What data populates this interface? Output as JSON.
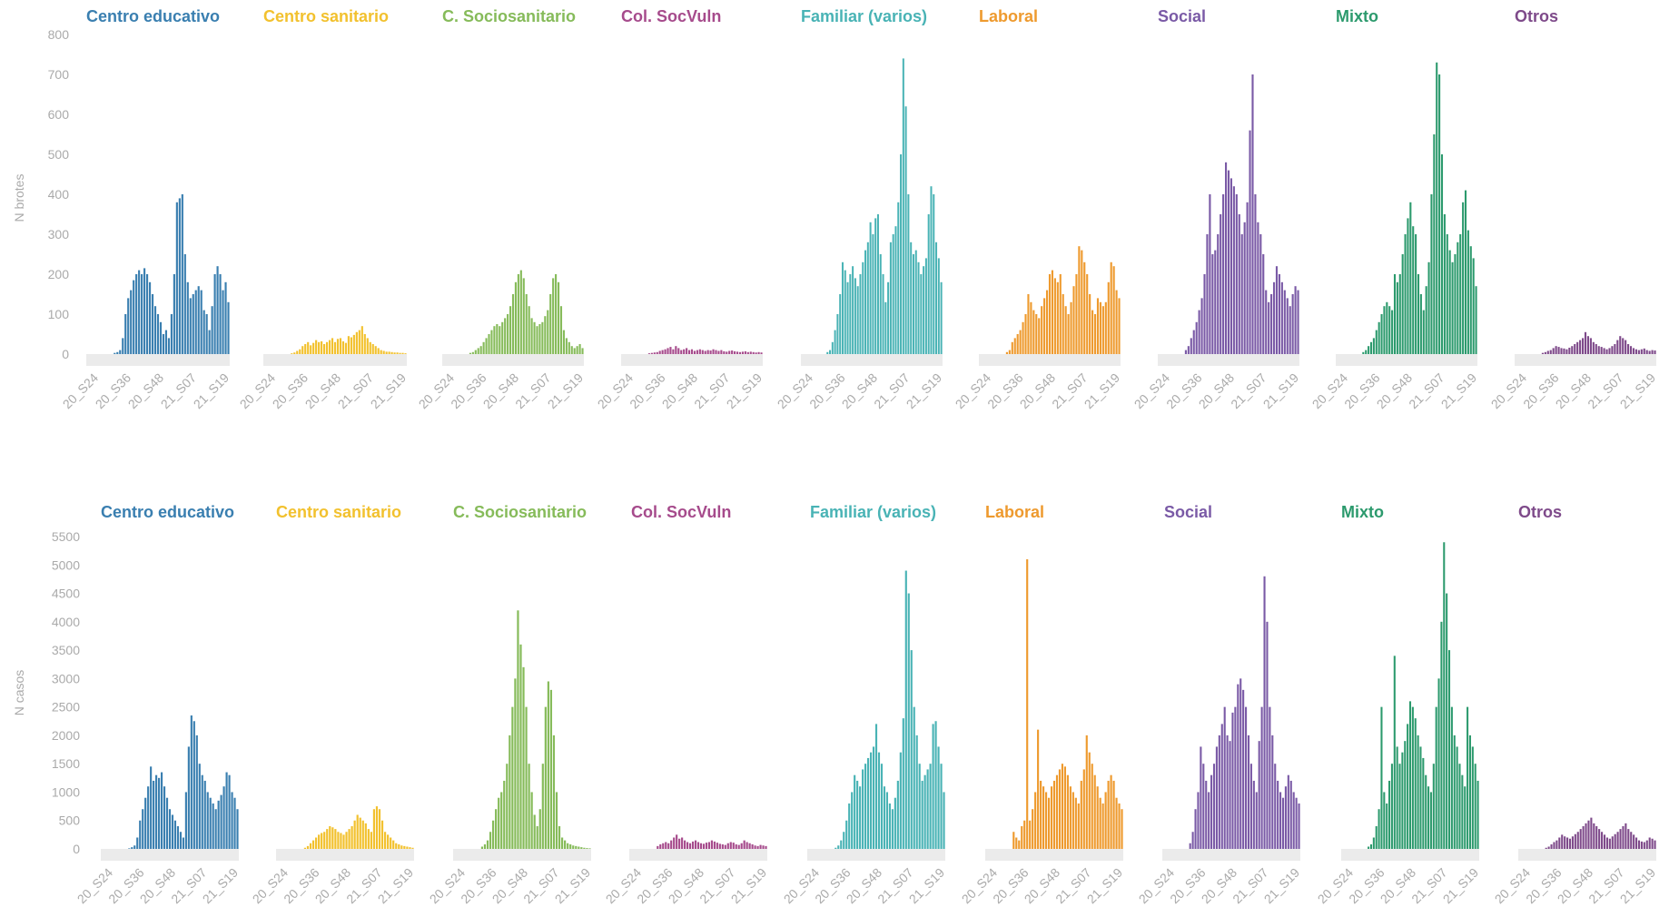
{
  "figure": {
    "row_labels": [
      "N brotes",
      "N casos"
    ]
  },
  "colors": {
    "Centro educativo": "#3a7fb0",
    "Centro sanitario": "#f2c12e",
    "C. Sociosanitario": "#86bb5a",
    "Col. SocVuln": "#a64b8c",
    "Familiar (varios)": "#49b3b5",
    "Laboral": "#ee9a2e",
    "Social": "#7a5aa6",
    "Mixto": "#2c9a6d",
    "Otros": "#7e4a8a",
    "axis_band": "#ebebeb",
    "tick_label": "#aaaaaa"
  },
  "chart_data": [
    {
      "type": "bar",
      "ylabel": "N brotes",
      "ylim": [
        0,
        800
      ],
      "yticks": [
        0,
        100,
        200,
        300,
        400,
        500,
        600,
        700,
        800
      ],
      "xtick_labels": [
        "20_S24",
        "20_S36",
        "20_S48",
        "21_S07",
        "21_S19"
      ],
      "x_range": [
        "20_S24",
        "21_S22"
      ],
      "grid": false,
      "legend": "panel titles",
      "series": [
        {
          "name": "Centro educativo",
          "values": [
            0,
            0,
            0,
            0,
            0,
            0,
            0,
            0,
            0,
            0,
            3,
            5,
            10,
            40,
            100,
            140,
            160,
            185,
            200,
            210,
            200,
            215,
            200,
            180,
            150,
            120,
            100,
            80,
            50,
            60,
            40,
            100,
            200,
            380,
            390,
            400,
            250,
            180,
            140,
            150,
            160,
            170,
            160,
            110,
            100,
            60,
            120,
            200,
            220,
            200,
            160,
            180,
            130
          ]
        },
        {
          "name": "Centro sanitario",
          "values": [
            0,
            0,
            0,
            0,
            0,
            0,
            0,
            0,
            0,
            0,
            2,
            4,
            8,
            12,
            20,
            25,
            30,
            22,
            28,
            35,
            30,
            32,
            25,
            30,
            35,
            40,
            30,
            38,
            40,
            32,
            28,
            45,
            42,
            48,
            55,
            60,
            70,
            50,
            40,
            30,
            25,
            20,
            15,
            10,
            8,
            6,
            6,
            5,
            4,
            4,
            3,
            3,
            2
          ]
        },
        {
          "name": "C. Sociosanitario",
          "values": [
            0,
            0,
            0,
            0,
            0,
            0,
            0,
            0,
            0,
            0,
            3,
            5,
            10,
            15,
            20,
            30,
            40,
            50,
            60,
            70,
            75,
            70,
            80,
            90,
            100,
            120,
            150,
            180,
            200,
            210,
            190,
            150,
            120,
            90,
            80,
            70,
            75,
            80,
            95,
            110,
            150,
            190,
            200,
            180,
            120,
            60,
            40,
            30,
            20,
            15,
            20,
            25,
            15
          ]
        },
        {
          "name": "Col. SocVuln",
          "values": [
            0,
            0,
            0,
            0,
            0,
            0,
            0,
            0,
            0,
            0,
            2,
            3,
            4,
            5,
            8,
            10,
            12,
            15,
            18,
            12,
            20,
            15,
            10,
            12,
            15,
            10,
            12,
            8,
            10,
            12,
            10,
            8,
            10,
            9,
            12,
            10,
            8,
            10,
            7,
            6,
            8,
            9,
            7,
            6,
            5,
            6,
            7,
            5,
            6,
            5,
            4,
            5,
            4
          ]
        },
        {
          "name": "Familiar (varios)",
          "values": [
            0,
            0,
            0,
            0,
            0,
            0,
            0,
            0,
            0,
            0,
            5,
            10,
            30,
            60,
            100,
            150,
            230,
            210,
            180,
            200,
            220,
            190,
            170,
            200,
            230,
            260,
            280,
            330,
            300,
            340,
            350,
            250,
            200,
            130,
            180,
            280,
            300,
            320,
            380,
            500,
            740,
            620,
            400,
            280,
            250,
            260,
            230,
            200,
            220,
            240,
            350,
            420,
            400,
            280,
            240,
            180
          ]
        },
        {
          "name": "Laboral",
          "values": [
            0,
            0,
            0,
            0,
            0,
            0,
            0,
            0,
            0,
            0,
            5,
            10,
            30,
            40,
            50,
            60,
            80,
            100,
            150,
            130,
            110,
            100,
            90,
            120,
            140,
            160,
            200,
            210,
            190,
            180,
            200,
            150,
            120,
            100,
            130,
            170,
            200,
            270,
            260,
            230,
            200,
            150,
            110,
            100,
            140,
            130,
            120,
            130,
            180,
            230,
            220,
            160,
            140
          ]
        },
        {
          "name": "Social",
          "values": [
            0,
            0,
            0,
            0,
            0,
            0,
            0,
            0,
            0,
            0,
            10,
            20,
            40,
            60,
            80,
            110,
            140,
            200,
            300,
            400,
            250,
            260,
            300,
            350,
            400,
            480,
            460,
            440,
            420,
            400,
            350,
            300,
            330,
            380,
            560,
            700,
            400,
            330,
            300,
            250,
            160,
            130,
            150,
            180,
            220,
            200,
            180,
            160,
            140,
            120,
            150,
            170,
            160
          ]
        },
        {
          "name": "Mixto",
          "values": [
            0,
            0,
            0,
            0,
            0,
            0,
            0,
            0,
            0,
            0,
            5,
            10,
            20,
            30,
            40,
            60,
            80,
            100,
            120,
            130,
            120,
            110,
            200,
            180,
            200,
            250,
            300,
            340,
            380,
            320,
            300,
            200,
            150,
            110,
            170,
            230,
            400,
            550,
            730,
            700,
            500,
            350,
            300,
            260,
            230,
            250,
            280,
            300,
            380,
            410,
            310,
            270,
            240,
            170
          ]
        },
        {
          "name": "Otros",
          "values": [
            0,
            0,
            0,
            0,
            0,
            0,
            0,
            0,
            0,
            0,
            3,
            5,
            8,
            10,
            15,
            20,
            18,
            15,
            14,
            12,
            16,
            20,
            25,
            30,
            35,
            40,
            55,
            45,
            40,
            30,
            25,
            20,
            18,
            15,
            12,
            15,
            20,
            25,
            35,
            45,
            40,
            35,
            25,
            20,
            15,
            12,
            10,
            12,
            14,
            10,
            8,
            10,
            9
          ]
        }
      ]
    },
    {
      "type": "bar",
      "ylabel": "N casos",
      "ylim": [
        0,
        5500
      ],
      "yticks": [
        0,
        500,
        1000,
        1500,
        2000,
        2500,
        3000,
        3500,
        4000,
        4500,
        5000,
        5500
      ],
      "xtick_labels": [
        "20_S24",
        "20_S36",
        "20_S48",
        "21_S07",
        "21_S19"
      ],
      "x_range": [
        "20_S24",
        "21_S22"
      ],
      "grid": false,
      "legend": "panel titles",
      "series": [
        {
          "name": "Centro educativo",
          "values": [
            0,
            0,
            0,
            0,
            0,
            0,
            0,
            0,
            0,
            0,
            10,
            30,
            60,
            200,
            500,
            700,
            900,
            1100,
            1450,
            1200,
            1300,
            1250,
            1350,
            1100,
            900,
            700,
            600,
            500,
            400,
            300,
            200,
            1000,
            1800,
            2350,
            2250,
            2000,
            1500,
            1300,
            1200,
            1000,
            900,
            800,
            700,
            850,
            950,
            1100,
            1350,
            1300,
            1000,
            900,
            700
          ]
        },
        {
          "name": "Centro sanitario",
          "values": [
            0,
            0,
            0,
            0,
            0,
            0,
            0,
            0,
            0,
            0,
            20,
            50,
            100,
            150,
            200,
            250,
            280,
            300,
            350,
            400,
            380,
            350,
            300,
            280,
            250,
            300,
            350,
            400,
            500,
            600,
            550,
            500,
            450,
            350,
            300,
            700,
            750,
            700,
            500,
            300,
            250,
            200,
            150,
            100,
            80,
            60,
            50,
            40,
            30,
            20
          ]
        },
        {
          "name": "C. Sociosanitario",
          "values": [
            0,
            0,
            0,
            0,
            0,
            0,
            0,
            0,
            0,
            0,
            40,
            80,
            150,
            300,
            500,
            700,
            900,
            1000,
            1200,
            1500,
            2000,
            2500,
            3000,
            4200,
            3600,
            3200,
            2500,
            1500,
            1000,
            600,
            400,
            700,
            1500,
            2500,
            2950,
            2800,
            2000,
            1000,
            400,
            200,
            150,
            100,
            80,
            60,
            50,
            40,
            30,
            20,
            15,
            10
          ]
        },
        {
          "name": "Col. SocVuln",
          "values": [
            0,
            0,
            0,
            0,
            0,
            0,
            0,
            0,
            0,
            0,
            50,
            80,
            100,
            120,
            100,
            150,
            200,
            250,
            180,
            200,
            150,
            120,
            100,
            130,
            150,
            120,
            100,
            90,
            110,
            120,
            150,
            130,
            110,
            90,
            80,
            70,
            100,
            120,
            110,
            80,
            70,
            100,
            150,
            120,
            100,
            80,
            60,
            50,
            70,
            60,
            50
          ]
        },
        {
          "name": "Familiar (varios)",
          "values": [
            0,
            0,
            0,
            0,
            0,
            0,
            0,
            0,
            0,
            0,
            20,
            60,
            150,
            300,
            500,
            800,
            1000,
            1300,
            1200,
            1100,
            1400,
            1500,
            1600,
            1700,
            1800,
            2200,
            1700,
            1500,
            1100,
            1000,
            800,
            700,
            900,
            1200,
            1700,
            2300,
            4900,
            4500,
            3500,
            2500,
            2000,
            1500,
            1200,
            1300,
            1400,
            1500,
            2200,
            2250,
            1800,
            1500,
            1000
          ]
        },
        {
          "name": "Laboral",
          "values": [
            0,
            0,
            0,
            0,
            0,
            0,
            0,
            0,
            0,
            0,
            300,
            200,
            150,
            400,
            500,
            5100,
            500,
            700,
            1000,
            2100,
            1200,
            1100,
            1000,
            900,
            1100,
            1200,
            1300,
            1400,
            1500,
            1450,
            1300,
            1100,
            1000,
            900,
            800,
            1200,
            1400,
            2000,
            1700,
            1500,
            1300,
            1100,
            900,
            800,
            1000,
            1200,
            1300,
            1200,
            900,
            800,
            700
          ]
        },
        {
          "name": "Social",
          "values": [
            0,
            0,
            0,
            0,
            0,
            0,
            0,
            0,
            0,
            0,
            100,
            300,
            700,
            1000,
            1800,
            1500,
            1200,
            1000,
            1300,
            1500,
            1800,
            2000,
            2200,
            2500,
            2000,
            1900,
            2400,
            2500,
            2900,
            3000,
            2800,
            2500,
            2000,
            1500,
            1200,
            1000,
            1900,
            2500,
            4800,
            4000,
            2500,
            2000,
            1500,
            1200,
            1000,
            900,
            1100,
            1300,
            1200,
            1000,
            900,
            800
          ]
        },
        {
          "name": "Mixto",
          "values": [
            0,
            0,
            0,
            0,
            0,
            0,
            0,
            0,
            0,
            0,
            40,
            80,
            200,
            400,
            700,
            2500,
            1000,
            800,
            1200,
            1500,
            3400,
            1800,
            1500,
            1700,
            1900,
            2200,
            2600,
            2500,
            2300,
            2000,
            1800,
            1600,
            1300,
            1100,
            1000,
            1500,
            2500,
            3000,
            4000,
            5400,
            4500,
            3500,
            2500,
            2000,
            1800,
            1500,
            1300,
            1100,
            2500,
            2000,
            1800,
            1500,
            1200
          ]
        },
        {
          "name": "Otros",
          "values": [
            0,
            0,
            0,
            0,
            0,
            0,
            0,
            0,
            0,
            0,
            20,
            40,
            80,
            120,
            150,
            200,
            250,
            220,
            200,
            180,
            220,
            260,
            300,
            350,
            400,
            450,
            500,
            550,
            450,
            400,
            350,
            300,
            250,
            200,
            180,
            220,
            260,
            300,
            350,
            400,
            450,
            350,
            300,
            250,
            200,
            150,
            130,
            120,
            150,
            200,
            180,
            150
          ]
        }
      ]
    }
  ]
}
